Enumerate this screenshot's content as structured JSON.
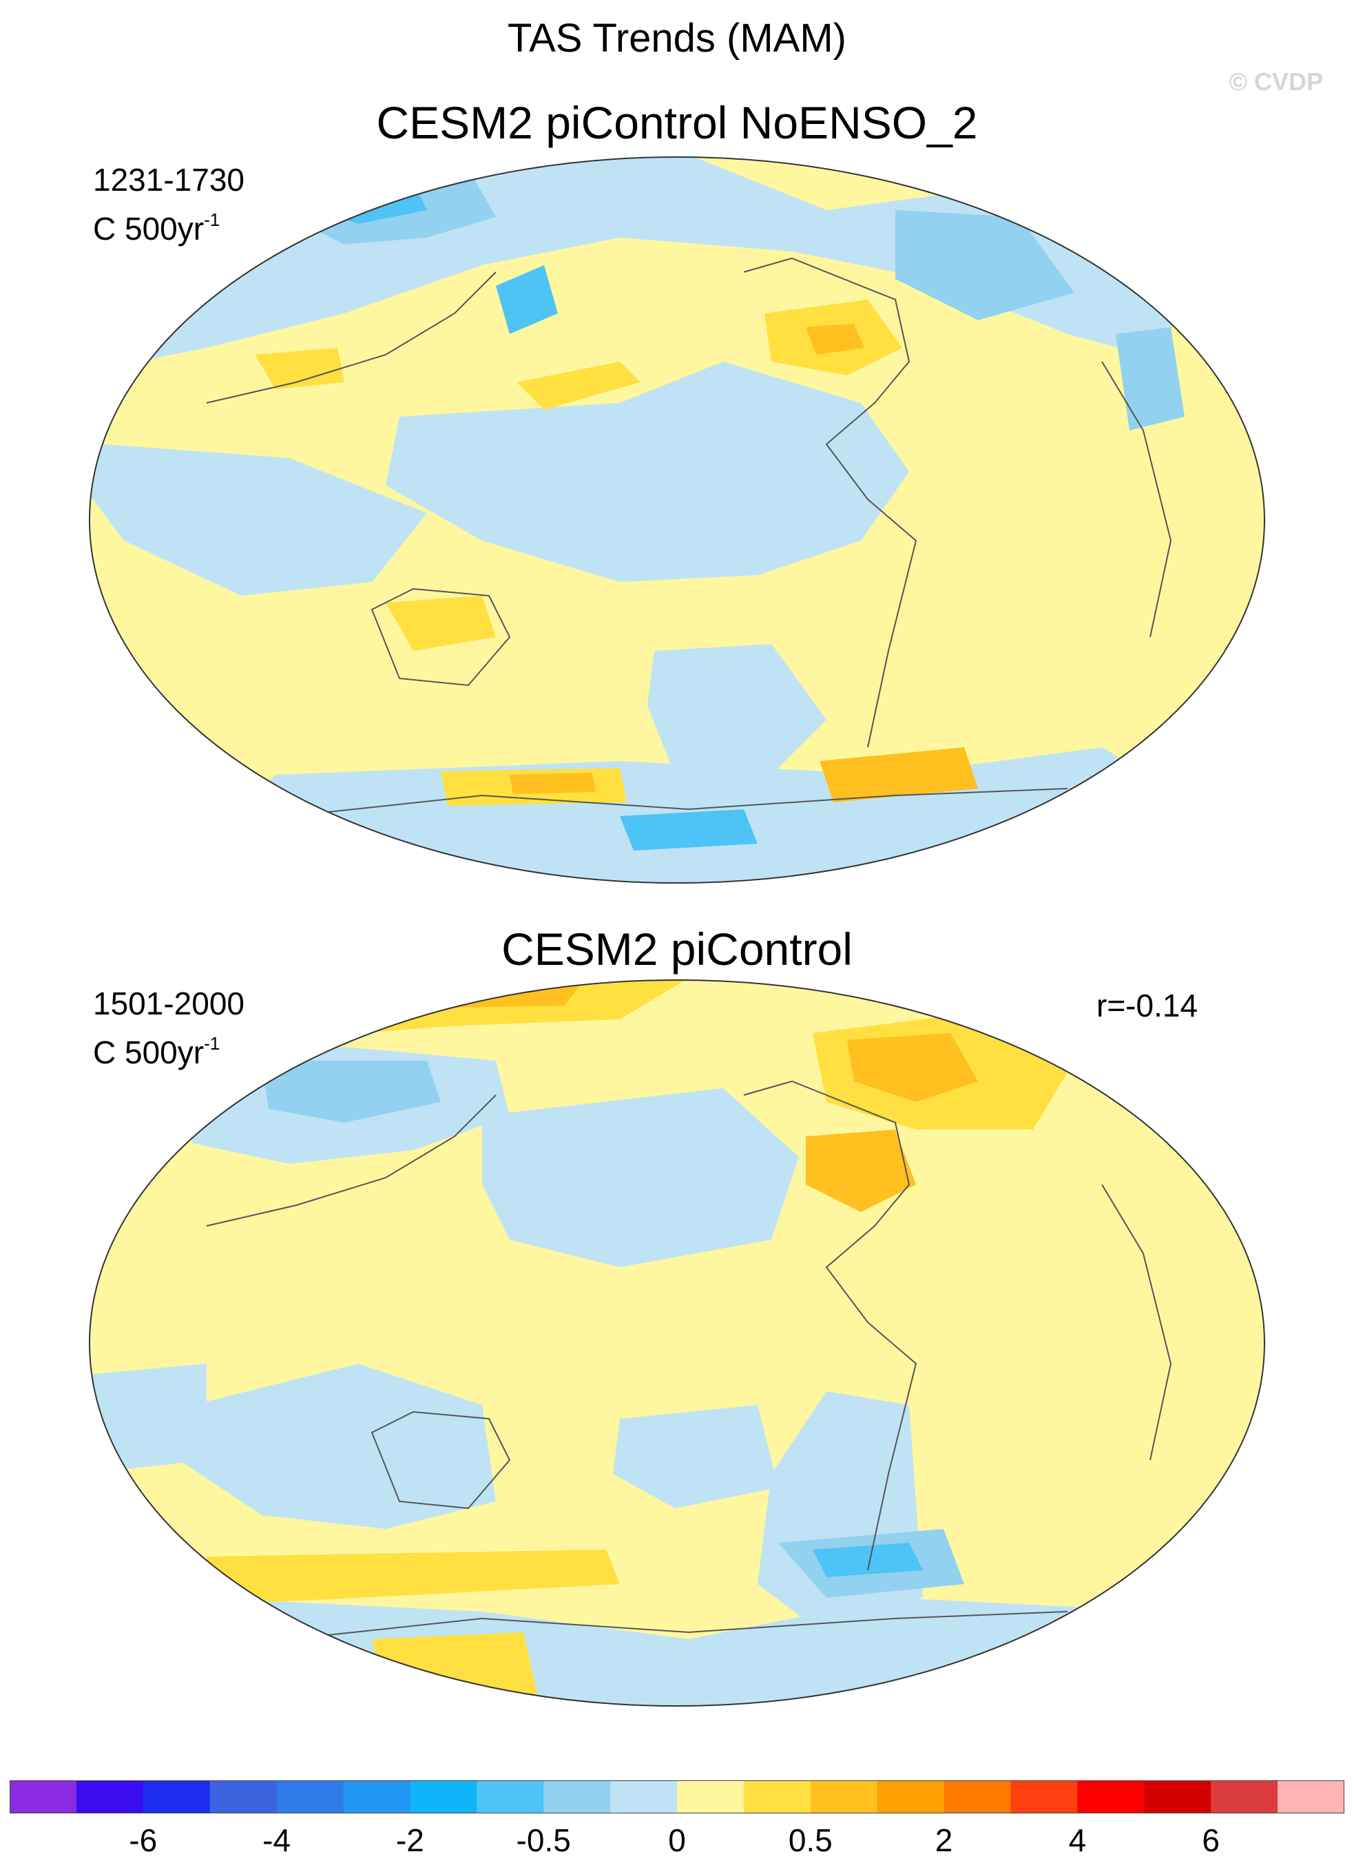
{
  "title": "TAS Trends (MAM)",
  "watermark": "© CVDP",
  "panels": [
    {
      "name": "CESM2 piControl NoENSO_2",
      "period": "1231-1730",
      "units_base": "C 500yr",
      "units_exp": "-1",
      "correlation": ""
    },
    {
      "name": "CESM2 piControl",
      "period": "1501-2000",
      "units_base": "C 500yr",
      "units_exp": "-1",
      "correlation": "r=-0.14"
    }
  ],
  "colorbar": {
    "colors": [
      "#8a2be2",
      "#3b0cf0",
      "#1e2df0",
      "#3c62e0",
      "#2f7be8",
      "#2196f3",
      "#10b4f8",
      "#4ec3f5",
      "#92d1f0",
      "#bfe3f5",
      "#fff7a0",
      "#ffe040",
      "#ffc020",
      "#ffa000",
      "#ff7a00",
      "#ff4010",
      "#ff0000",
      "#d40000",
      "#dc3c3c",
      "#ffb4b4"
    ],
    "tick_labels": [
      "-6",
      "-4",
      "-2",
      "-0.5",
      "0",
      "0.5",
      "2",
      "4",
      "6"
    ]
  },
  "map_colors": {
    "ocean_neutral": "#fff7a0",
    "cool_light": "#bfe3f5",
    "cool_medium": "#92d1f0",
    "cool_strong": "#4ec3f5",
    "warm_light": "#ffe040",
    "warm_medium": "#ffc020",
    "coastline": "#555555"
  }
}
